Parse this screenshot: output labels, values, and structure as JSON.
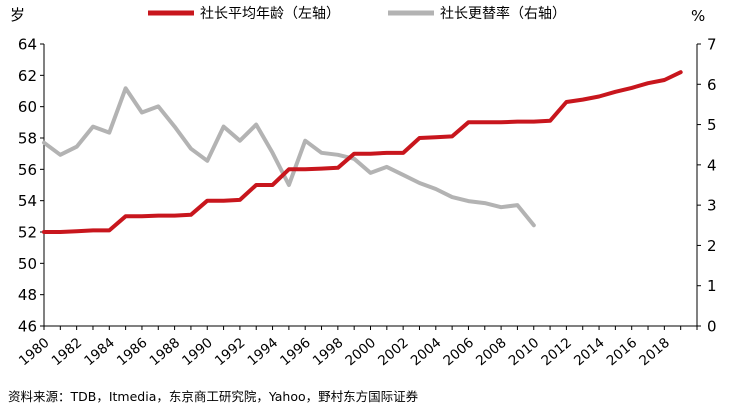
{
  "chart_data": {
    "type": "line",
    "left_unit": "岁",
    "right_unit": "%",
    "left_axis": {
      "min": 46,
      "max": 64,
      "step": 2
    },
    "right_axis": {
      "min": 0,
      "max": 7,
      "step": 1
    },
    "x_range": [
      1980,
      2020
    ],
    "x_ticks": [
      "1980",
      "1982",
      "1984",
      "1986",
      "1988",
      "1990",
      "1992",
      "1994",
      "1996",
      "1998",
      "2000",
      "2002",
      "2004",
      "2006",
      "2008",
      "2010",
      "2012",
      "2014",
      "2016",
      "2018"
    ],
    "grid": false,
    "legend_position": "top",
    "series": [
      {
        "name": "社长平均年龄（左轴）",
        "axis": "left",
        "color": "#c8161d",
        "x": [
          1980,
          1981,
          1982,
          1983,
          1984,
          1985,
          1986,
          1987,
          1988,
          1989,
          1990,
          1991,
          1992,
          1993,
          1994,
          1995,
          1996,
          1997,
          1998,
          1999,
          2000,
          2001,
          2002,
          2003,
          2004,
          2005,
          2006,
          2007,
          2008,
          2009,
          2010,
          2011,
          2012,
          2013,
          2014,
          2015,
          2016,
          2017,
          2018,
          2019
        ],
        "values": [
          52.0,
          52.0,
          52.05,
          52.1,
          52.1,
          53.0,
          53.0,
          53.05,
          53.05,
          53.1,
          54.0,
          54.0,
          54.05,
          55.0,
          55.0,
          56.0,
          56.0,
          56.05,
          56.1,
          57.0,
          57.0,
          57.05,
          57.05,
          58.0,
          58.05,
          58.1,
          59.0,
          59.0,
          59.0,
          59.05,
          59.05,
          59.1,
          60.3,
          60.45,
          60.65,
          60.95,
          61.2,
          61.5,
          61.7,
          62.2
        ]
      },
      {
        "name": "社长更替率（右轴）",
        "axis": "right",
        "color": "#b3b3b3",
        "x": [
          1980,
          1981,
          1982,
          1983,
          1984,
          1985,
          1986,
          1987,
          1988,
          1989,
          1990,
          1991,
          1992,
          1993,
          1994,
          1995,
          1996,
          1997,
          1998,
          1999,
          2000,
          2001,
          2002,
          2003,
          2004,
          2005,
          2006,
          2007,
          2008,
          2009,
          2010
        ],
        "values": [
          4.55,
          4.25,
          4.45,
          4.95,
          4.8,
          5.9,
          5.3,
          5.45,
          4.95,
          4.4,
          4.1,
          4.95,
          4.6,
          5.0,
          4.3,
          3.5,
          4.6,
          4.3,
          4.25,
          4.15,
          3.8,
          3.95,
          3.75,
          3.55,
          3.4,
          3.2,
          3.1,
          3.05,
          2.95,
          3.0,
          2.5
        ]
      }
    ],
    "source": "资料来源：TDB，Itmedia，东京商工研究院，Yahoo，野村东方国际证券"
  }
}
